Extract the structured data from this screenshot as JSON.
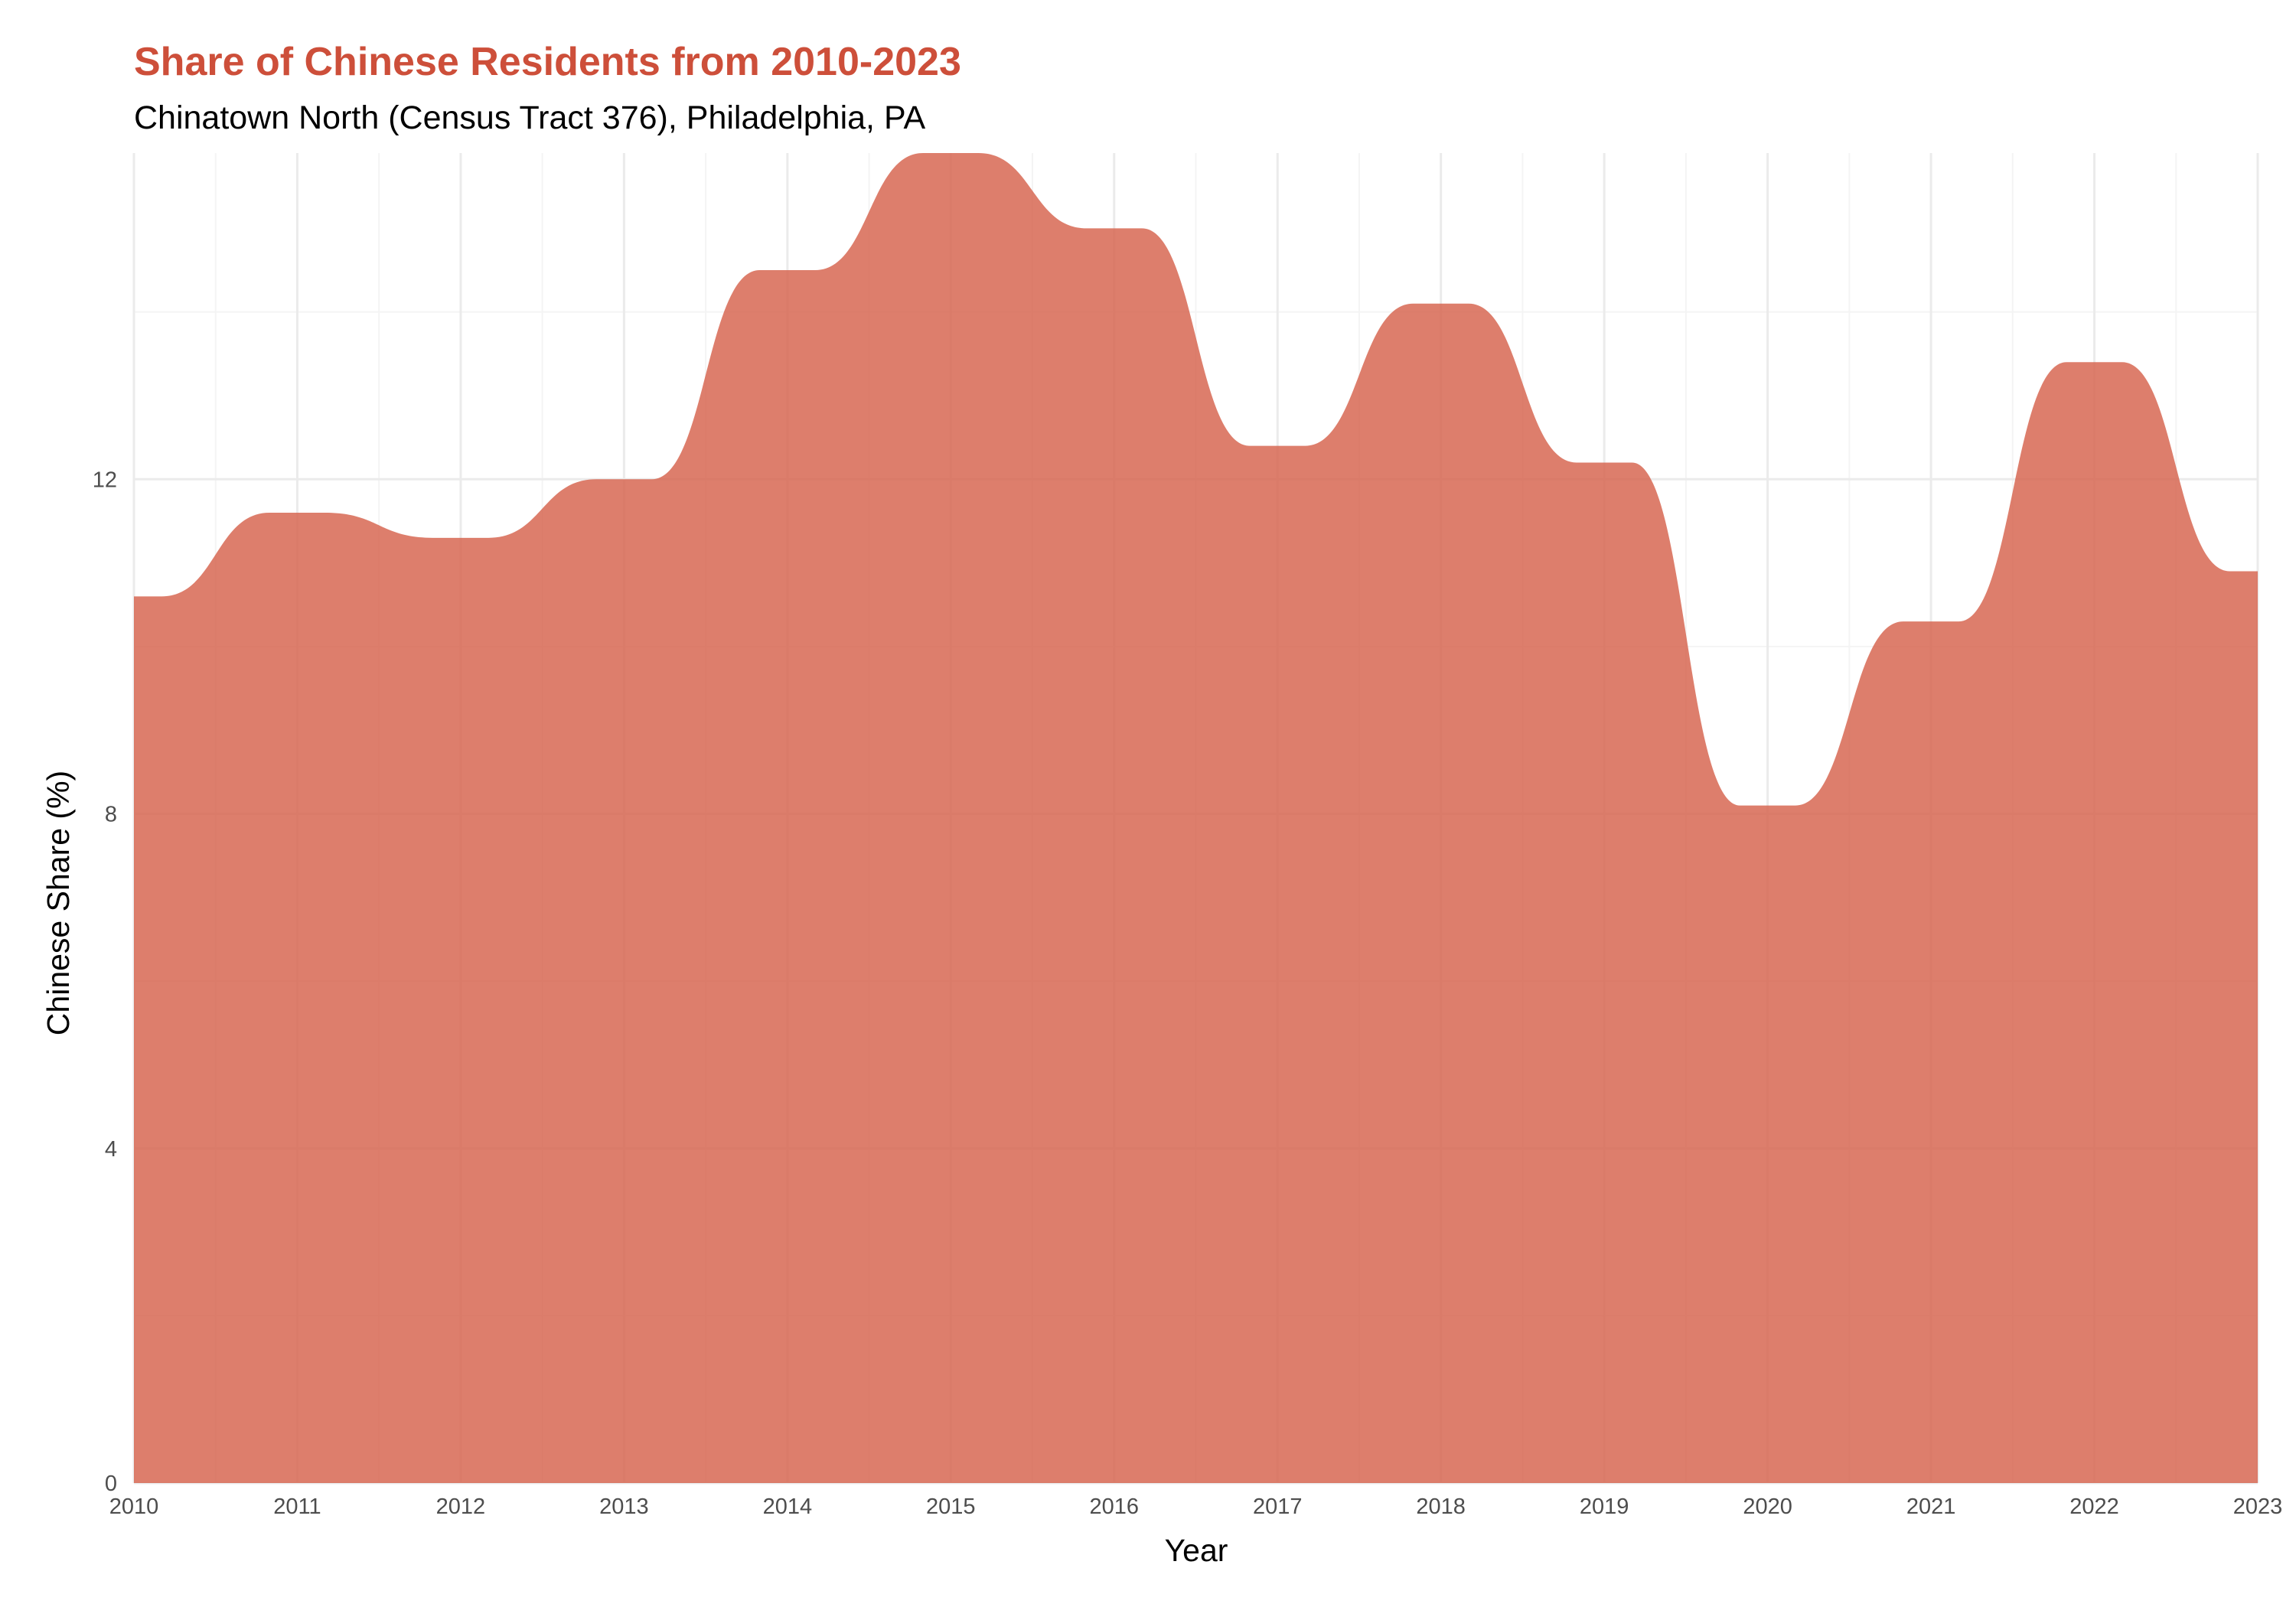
{
  "colors": {
    "area": "#d5624c",
    "title": "#cd4f3a",
    "grid_major": "#ebebeb",
    "grid_minor": "#f4f4f4"
  },
  "chart_data": {
    "type": "area",
    "title": "Share of Chinese Residents from 2010-2023",
    "subtitle": "Chinatown North (Census Tract 376), Philadelphia, PA",
    "xlabel": "Year",
    "ylabel": "Chinese Share (%)",
    "x": [
      2010,
      2011,
      2012,
      2013,
      2014,
      2015,
      2016,
      2017,
      2018,
      2019,
      2020,
      2021,
      2022,
      2023
    ],
    "values": [
      10.6,
      11.6,
      11.3,
      12.0,
      14.5,
      15.9,
      15.0,
      12.4,
      14.1,
      12.2,
      8.1,
      10.3,
      13.4,
      10.9
    ],
    "xlim": [
      2010,
      2023
    ],
    "ylim": [
      0,
      15.9
    ],
    "yticks": [
      0,
      4,
      8,
      12
    ],
    "xticks": [
      "2010",
      "2011",
      "2012",
      "2013",
      "2014",
      "2015",
      "2016",
      "2017",
      "2018",
      "2019",
      "2020",
      "2021",
      "2022",
      "2023"
    ],
    "grid": true,
    "legend": "none"
  }
}
